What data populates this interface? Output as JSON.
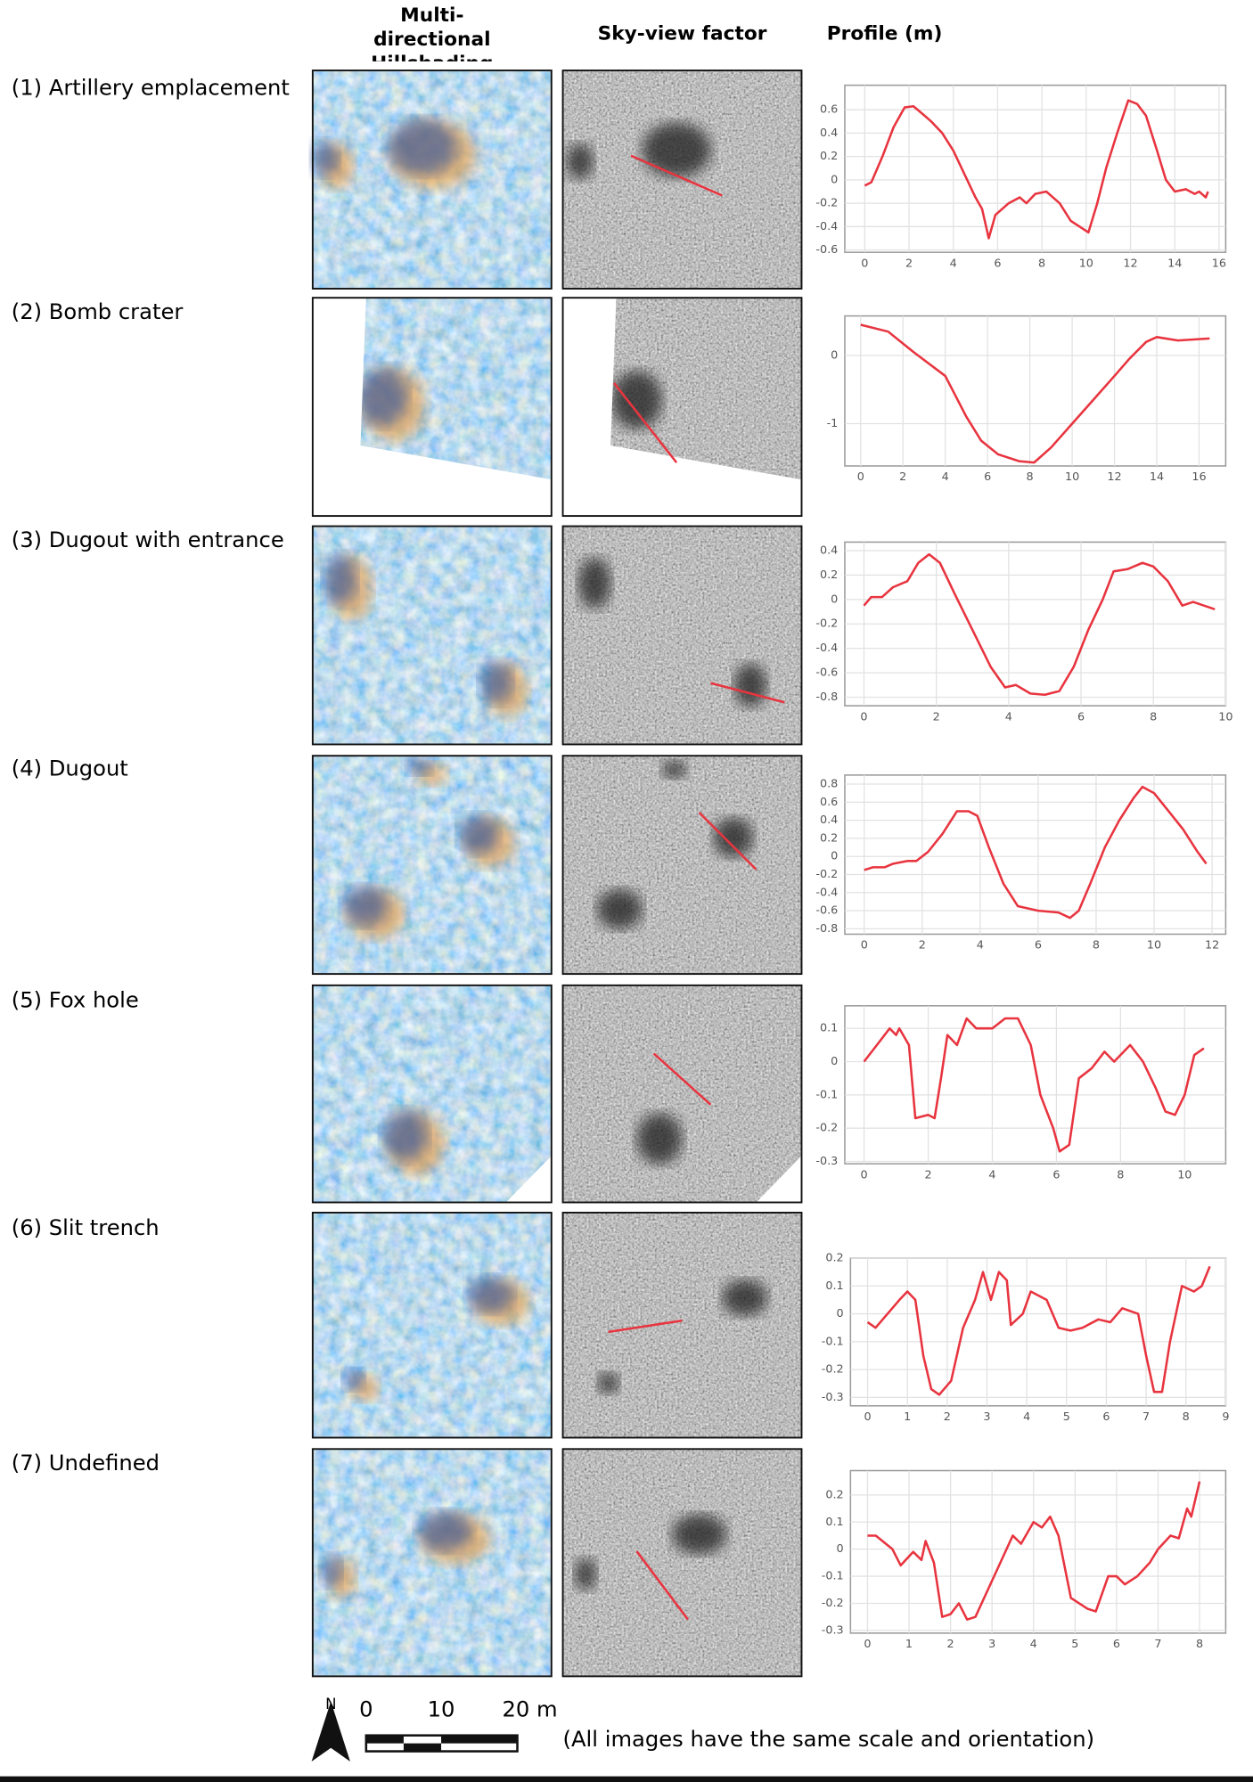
{
  "column_headers": [
    "Multi-directional Hillshading",
    "Sky-view factor",
    "Profile (m)"
  ],
  "scale_bar": {
    "north": "N",
    "labels": [
      "0",
      "10",
      "20 m"
    ]
  },
  "note": "(All images have the same scale and orientation)",
  "chart_data": [
    {
      "type": "line",
      "title": "(1) Artillery emplacement",
      "color": "#e8343f",
      "grid": true,
      "x": [
        0,
        0.3,
        0.8,
        1.3,
        1.8,
        2.2,
        2.7,
        3,
        3.5,
        4,
        4.5,
        5,
        5.3,
        5.6,
        5.9,
        6.2,
        6.5,
        7,
        7.3,
        7.7,
        8.2,
        8.5,
        8.8,
        9.3,
        9.7,
        10.1,
        10.5,
        10.9,
        11.4,
        11.9,
        12.3,
        12.7,
        13.2,
        13.6,
        14,
        14.5,
        14.9,
        15.1,
        15.4,
        15.5
      ],
      "values": [
        -0.05,
        -0.02,
        0.2,
        0.45,
        0.62,
        0.63,
        0.55,
        0.5,
        0.4,
        0.25,
        0.05,
        -0.15,
        -0.25,
        -0.5,
        -0.3,
        -0.25,
        -0.2,
        -0.15,
        -0.2,
        -0.12,
        -0.1,
        -0.15,
        -0.2,
        -0.35,
        -0.4,
        -0.45,
        -0.2,
        0.1,
        0.4,
        0.68,
        0.65,
        0.55,
        0.25,
        0,
        -0.1,
        -0.08,
        -0.12,
        -0.1,
        -0.15,
        -0.1
      ],
      "xlim": [
        -0.9,
        16.3
      ],
      "ylim": [
        -0.62,
        0.81
      ],
      "xticks": [
        0,
        2,
        4,
        6,
        8,
        10,
        12,
        14,
        16
      ],
      "yticks": [
        -0.6,
        -0.4,
        -0.2,
        0,
        0.2,
        0.4,
        0.6
      ]
    },
    {
      "type": "line",
      "title": "(2) Bomb crater",
      "color": "#e8343f",
      "grid": true,
      "x": [
        0,
        1.3,
        2.5,
        4,
        5,
        5.7,
        6.5,
        7.5,
        8.2,
        9,
        10,
        11,
        12,
        12.7,
        13.5,
        14,
        15,
        16.5
      ],
      "values": [
        0.45,
        0.35,
        0.05,
        -0.3,
        -0.9,
        -1.25,
        -1.45,
        -1.55,
        -1.57,
        -1.35,
        -1,
        -0.65,
        -0.3,
        -0.05,
        0.2,
        0.27,
        0.22,
        0.25
      ],
      "xlim": [
        -0.75,
        17.26
      ],
      "ylim": [
        -1.62,
        0.58
      ],
      "xticks": [
        0,
        2,
        4,
        6,
        8,
        10,
        12,
        14,
        16
      ],
      "yticks": [
        -1,
        0
      ]
    },
    {
      "type": "line",
      "title": "(3) Dugout with entrance",
      "color": "#e8343f",
      "grid": true,
      "x": [
        0,
        0.2,
        0.5,
        0.8,
        1.2,
        1.5,
        1.8,
        2.1,
        2.5,
        3,
        3.5,
        3.9,
        4.2,
        4.6,
        5,
        5.4,
        5.8,
        6.2,
        6.6,
        6.9,
        7.3,
        7.7,
        8,
        8.4,
        8.8,
        9.1,
        9.4,
        9.7
      ],
      "values": [
        -0.05,
        0.02,
        0.02,
        0.1,
        0.15,
        0.3,
        0.37,
        0.3,
        0.05,
        -0.25,
        -0.55,
        -0.72,
        -0.7,
        -0.77,
        -0.78,
        -0.75,
        -0.55,
        -0.25,
        0,
        0.23,
        0.25,
        0.3,
        0.27,
        0.15,
        -0.05,
        -0.02,
        -0.05,
        -0.08
      ],
      "xlim": [
        -0.53,
        10
      ],
      "ylim": [
        -0.87,
        0.47
      ],
      "xticks": [
        0,
        2,
        4,
        6,
        8,
        10
      ],
      "yticks": [
        -0.8,
        -0.6,
        -0.4,
        -0.2,
        0,
        0.2,
        0.4
      ]
    },
    {
      "type": "line",
      "title": "(4) Dugout",
      "color": "#e8343f",
      "grid": true,
      "x": [
        0,
        0.3,
        0.7,
        1,
        1.5,
        1.8,
        2.2,
        2.7,
        3.2,
        3.6,
        3.9,
        4.3,
        4.8,
        5.3,
        6,
        6.7,
        7.1,
        7.4,
        7.8,
        8.3,
        8.8,
        9.3,
        9.6,
        10,
        10.5,
        11,
        11.5,
        11.8
      ],
      "values": [
        -0.15,
        -0.12,
        -0.12,
        -0.08,
        -0.05,
        -0.05,
        0.05,
        0.25,
        0.5,
        0.5,
        0.45,
        0.1,
        -0.3,
        -0.55,
        -0.6,
        -0.62,
        -0.68,
        -0.6,
        -0.3,
        0.1,
        0.4,
        0.65,
        0.77,
        0.7,
        0.5,
        0.3,
        0.05,
        -0.08
      ],
      "xlim": [
        -0.67,
        12.47
      ],
      "ylim": [
        -0.86,
        0.9
      ],
      "xticks": [
        0,
        2,
        4,
        6,
        8,
        10,
        12
      ],
      "yticks": [
        -0.8,
        -0.6,
        -0.4,
        -0.2,
        0,
        0.2,
        0.4,
        0.6,
        0.8
      ]
    },
    {
      "type": "line",
      "title": "(5) Fox hole",
      "color": "#e8343f",
      "grid": true,
      "x": [
        0,
        0.4,
        0.8,
        1,
        1.1,
        1.4,
        1.6,
        2,
        2.2,
        2.4,
        2.6,
        2.9,
        3.2,
        3.5,
        4,
        4.4,
        4.8,
        5.2,
        5.5,
        5.9,
        6.1,
        6.4,
        6.7,
        7.1,
        7.5,
        7.8,
        8.3,
        8.7,
        9.1,
        9.4,
        9.7,
        10,
        10.3,
        10.6
      ],
      "values": [
        0,
        0.05,
        0.1,
        0.08,
        0.1,
        0.05,
        -0.17,
        -0.16,
        -0.17,
        -0.05,
        0.08,
        0.05,
        0.13,
        0.1,
        0.1,
        0.13,
        0.13,
        0.05,
        -0.1,
        -0.2,
        -0.27,
        -0.25,
        -0.05,
        -0.02,
        0.03,
        0,
        0.05,
        0,
        -0.08,
        -0.15,
        -0.16,
        -0.1,
        0.02,
        0.04
      ],
      "xlim": [
        -0.6,
        11.28
      ],
      "ylim": [
        -0.307,
        0.168
      ],
      "xticks": [
        0,
        2,
        4,
        6,
        8,
        10
      ],
      "yticks": [
        -0.3,
        -0.2,
        -0.1,
        0,
        0.1
      ]
    },
    {
      "type": "line",
      "title": "(6) Slit trench",
      "color": "#e8343f",
      "grid": true,
      "x": [
        0,
        0.2,
        0.5,
        0.8,
        1,
        1.2,
        1.4,
        1.6,
        1.8,
        2.1,
        2.4,
        2.7,
        2.9,
        3.1,
        3.3,
        3.5,
        3.6,
        3.9,
        4.1,
        4.5,
        4.8,
        5.1,
        5.4,
        5.8,
        6.1,
        6.4,
        6.8,
        7,
        7.2,
        7.4,
        7.6,
        7.9,
        8.2,
        8.4,
        8.6
      ],
      "values": [
        -0.03,
        -0.05,
        0,
        0.05,
        0.08,
        0.05,
        -0.15,
        -0.27,
        -0.29,
        -0.24,
        -0.05,
        0.05,
        0.15,
        0.05,
        0.15,
        0.12,
        -0.04,
        0,
        0.08,
        0.05,
        -0.05,
        -0.06,
        -0.05,
        -0.02,
        -0.03,
        0.02,
        0,
        -0.15,
        -0.28,
        -0.28,
        -0.1,
        0.1,
        0.08,
        0.1,
        0.17
      ],
      "xlim": [
        -0.43,
        9
      ],
      "ylim": [
        -0.33,
        0.2
      ],
      "xticks": [
        0,
        1,
        2,
        3,
        4,
        5,
        6,
        7,
        8,
        9
      ],
      "yticks": [
        -0.3,
        -0.2,
        -0.1,
        0,
        0.1,
        0.2
      ]
    },
    {
      "type": "line",
      "title": "(7) Undefined",
      "color": "#e8343f",
      "grid": true,
      "x": [
        0,
        0.2,
        0.6,
        0.8,
        1.1,
        1.3,
        1.4,
        1.6,
        1.8,
        2,
        2.2,
        2.4,
        2.6,
        2.9,
        3.2,
        3.5,
        3.7,
        4,
        4.2,
        4.4,
        4.6,
        4.9,
        5.3,
        5.5,
        5.8,
        6,
        6.2,
        6.5,
        6.8,
        7,
        7.3,
        7.5,
        7.7,
        7.8,
        8
      ],
      "values": [
        0.05,
        0.05,
        0,
        -0.06,
        -0.01,
        -0.04,
        0.03,
        -0.05,
        -0.25,
        -0.24,
        -0.2,
        -0.26,
        -0.25,
        -0.15,
        -0.05,
        0.05,
        0.02,
        0.1,
        0.08,
        0.12,
        0.05,
        -0.18,
        -0.22,
        -0.23,
        -0.1,
        -0.1,
        -0.13,
        -0.1,
        -0.05,
        0,
        0.05,
        0.04,
        0.15,
        0.12,
        0.25
      ],
      "xlim": [
        -0.41,
        8.63
      ],
      "ylim": [
        -0.31,
        0.29
      ],
      "xticks": [
        0,
        1,
        2,
        3,
        4,
        5,
        6,
        7,
        8
      ],
      "yticks": [
        -0.3,
        -0.2,
        -0.1,
        0,
        0.1,
        0.2
      ]
    }
  ]
}
